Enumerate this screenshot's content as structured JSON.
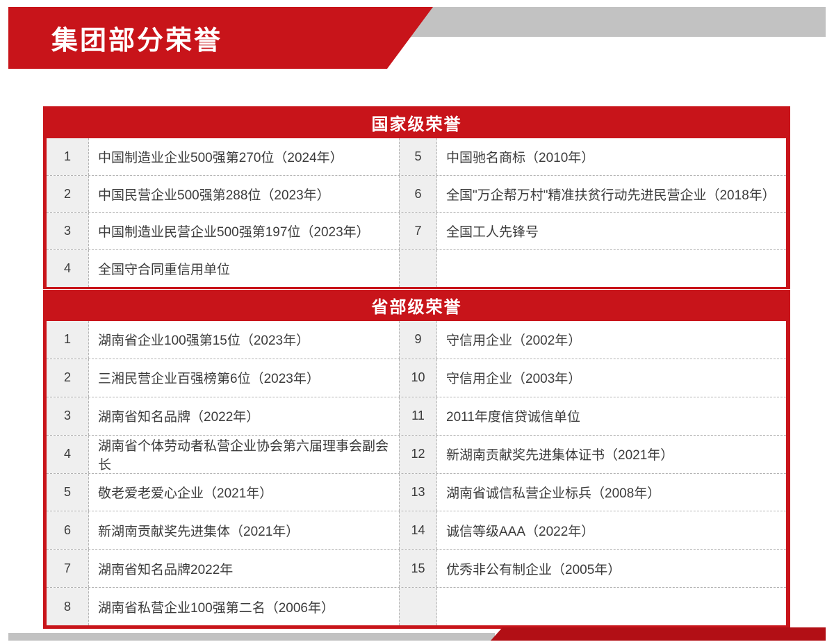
{
  "page": {
    "title": "集团部分荣誉"
  },
  "colors": {
    "red": "#c8141a",
    "red_dark": "#b20f15",
    "gray_bar": "#c2c2c2",
    "num_col_bg": "#efefef",
    "dash": "#b3b3b3",
    "text": "#3c3c3c"
  },
  "sections": [
    {
      "header": "国家级荣誉",
      "rows": [
        {
          "left_no": "1",
          "left_text": "中国制造业企业500强第270位（2024年）",
          "right_no": "5",
          "right_text": "中国驰名商标（2010年）"
        },
        {
          "left_no": "2",
          "left_text": "中国民营企业500强第288位（2023年）",
          "right_no": "6",
          "right_text": "全国\"万企帮万村\"精准扶贫行动先进民营企业（2018年）"
        },
        {
          "left_no": "3",
          "left_text": "中国制造业民营企业500强第197位（2023年）",
          "right_no": "7",
          "right_text": "全国工人先锋号"
        },
        {
          "left_no": "4",
          "left_text": "全国守合同重信用单位",
          "right_no": "",
          "right_text": ""
        }
      ]
    },
    {
      "header": "省部级荣誉",
      "rows": [
        {
          "left_no": "1",
          "left_text": "湖南省企业100强第15位（2023年）",
          "right_no": "9",
          "right_text": "守信用企业（2002年）"
        },
        {
          "left_no": "2",
          "left_text": "三湘民营企业百强榜第6位（2023年）",
          "right_no": "10",
          "right_text": "守信用企业（2003年）"
        },
        {
          "left_no": "3",
          "left_text": "湖南省知名品牌（2022年）",
          "right_no": "11",
          "right_text": "2011年度信贷诚信单位"
        },
        {
          "left_no": "4",
          "left_text": "湖南省个体劳动者私营企业协会第六届理事会副会长",
          "right_no": "12",
          "right_text": "新湖南贡献奖先进集体证书（2021年）"
        },
        {
          "left_no": "5",
          "left_text": "敬老爱老爱心企业（2021年）",
          "right_no": "13",
          "right_text": "湖南省诚信私营企业标兵（2008年）"
        },
        {
          "left_no": "6",
          "left_text": "新湖南贡献奖先进集体（2021年）",
          "right_no": "14",
          "right_text": "诚信等级AAA（2022年）"
        },
        {
          "left_no": "7",
          "left_text": "湖南省知名品牌2022年",
          "right_no": "15",
          "right_text": "优秀非公有制企业（2005年）"
        },
        {
          "left_no": "8",
          "left_text": "湖南省私营企业100强第二名（2006年）",
          "right_no": "",
          "right_text": ""
        }
      ]
    }
  ]
}
